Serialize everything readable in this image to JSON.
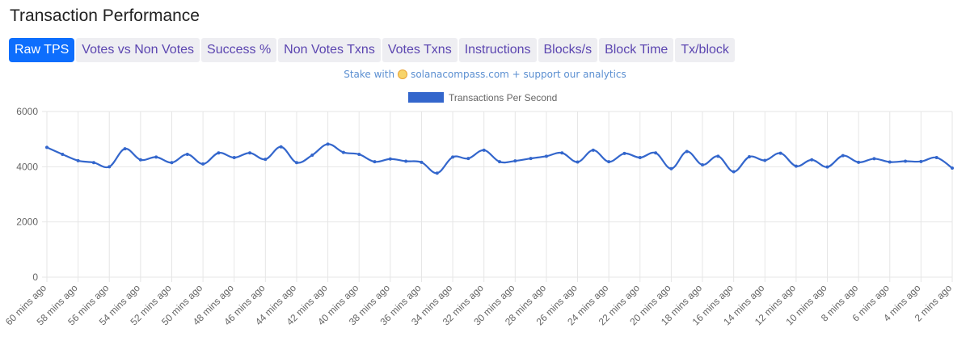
{
  "title": "Transaction Performance",
  "tabs": [
    {
      "label": "Raw TPS",
      "active": true
    },
    {
      "label": "Votes vs Non Votes",
      "active": false
    },
    {
      "label": "Success %",
      "active": false
    },
    {
      "label": "Non Votes Txns",
      "active": false
    },
    {
      "label": "Votes Txns",
      "active": false
    },
    {
      "label": "Instructions",
      "active": false
    },
    {
      "label": "Blocks/s",
      "active": false
    },
    {
      "label": "Block Time",
      "active": false
    },
    {
      "label": "Tx/block",
      "active": false
    }
  ],
  "stake_banner": {
    "prefix": "Stake with",
    "icon": "solanacompass-sun-icon",
    "suffix": "solanacompass.com + support our analytics"
  },
  "colors": {
    "line": "#3366cc",
    "active_tab": "#0d6efd",
    "tab_text": "#5b45b0",
    "grid": "#e6e6e6"
  },
  "chart_data": {
    "type": "line",
    "legend": "Transactions Per Second",
    "legend_position": "top-center",
    "grid": true,
    "ylim": [
      0,
      6000
    ],
    "yticks": [
      0,
      2000,
      4000,
      6000
    ],
    "xticks": [
      "60 mins ago",
      "58 mins ago",
      "56 mins ago",
      "54 mins ago",
      "52 mins ago",
      "50 mins ago",
      "48 mins ago",
      "46 mins ago",
      "44 mins ago",
      "42 mins ago",
      "40 mins ago",
      "38 mins ago",
      "36 mins ago",
      "34 mins ago",
      "32 mins ago",
      "30 mins ago",
      "28 mins ago",
      "26 mins ago",
      "24 mins ago",
      "22 mins ago",
      "20 mins ago",
      "18 mins ago",
      "16 mins ago",
      "14 mins ago",
      "12 mins ago",
      "10 mins ago",
      "8 mins ago",
      "6 mins ago",
      "4 mins ago",
      "2 mins ago"
    ],
    "series": [
      {
        "name": "Transactions Per Second",
        "values": [
          4700,
          4450,
          4220,
          4150,
          4000,
          4650,
          4250,
          4350,
          4150,
          4450,
          4100,
          4500,
          4330,
          4500,
          4270,
          4720,
          4150,
          4420,
          4820,
          4520,
          4450,
          4180,
          4280,
          4200,
          4160,
          3770,
          4350,
          4300,
          4600,
          4180,
          4210,
          4300,
          4380,
          4500,
          4170,
          4600,
          4180,
          4480,
          4330,
          4500,
          3930,
          4550,
          4070,
          4380,
          3820,
          4360,
          4230,
          4490,
          4020,
          4250,
          3990,
          4400,
          4160,
          4290,
          4170,
          4200,
          4190,
          4330,
          3950
        ]
      }
    ]
  }
}
